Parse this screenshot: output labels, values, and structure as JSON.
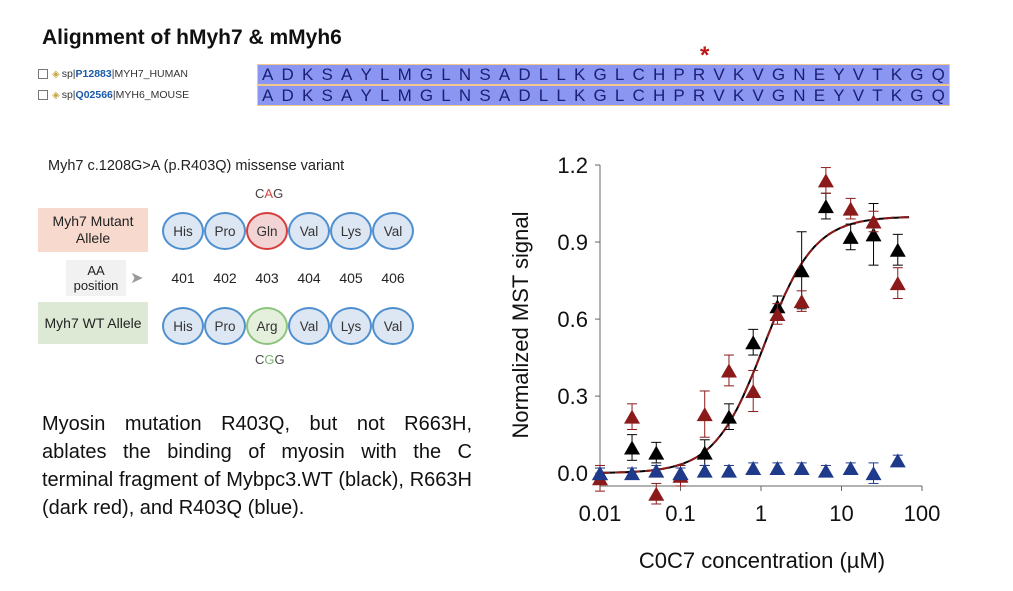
{
  "alignment": {
    "title": "Alignment of hMyh7 & mMyh6",
    "rows": [
      {
        "prefix": "sp|",
        "accession": "P12883",
        "name": "|MYH7_HUMAN"
      },
      {
        "prefix": "sp|",
        "accession": "Q02566",
        "name": "|MYH6_MOUSE"
      }
    ],
    "sequence": [
      "A",
      "D",
      "K",
      "S",
      "A",
      "Y",
      "L",
      "M",
      "G",
      "L",
      "N",
      "S",
      "A",
      "D",
      "L",
      "L",
      "K",
      "G",
      "L",
      "C",
      "H",
      "P",
      "R",
      "V",
      "K",
      "V",
      "G",
      "N",
      "E",
      "Y",
      "V",
      "T",
      "K",
      "G",
      "Q"
    ],
    "marker": "*",
    "colors": {
      "residue_bg": "#8b96f3",
      "border": "#f2c78a",
      "marker": "#c01818"
    }
  },
  "variant": {
    "title": "Myh7 c.1208G>A (p.R403Q) missense variant",
    "mutant_label": "Myh7 Mutant Allele",
    "wt_label": "Myh7 WT Allele",
    "position_label": "AA position",
    "mutant_codon": {
      "pre": "C",
      "hl": "A",
      "post": "G"
    },
    "wt_codon": {
      "pre": "C",
      "hl": "G",
      "post": "G"
    },
    "mutant_residues": [
      "His",
      "Pro",
      "Gln",
      "Val",
      "Lys",
      "Val"
    ],
    "wt_residues": [
      "His",
      "Pro",
      "Arg",
      "Val",
      "Lys",
      "Val"
    ],
    "positions": [
      "401",
      "402",
      "403",
      "404",
      "405",
      "406"
    ],
    "colors": {
      "mutant_bg": "#f7d9cd",
      "wt_bg": "#dde9d5",
      "mutant_ring": "#d63c3c",
      "mutant_fill": "#f3d4d4",
      "wt_ring": "#8cc47c",
      "wt_fill": "#e4efdc",
      "default_ring": "#4f8fcf",
      "default_fill": "#dde7f3"
    }
  },
  "caption": "Myosin mutation R403Q, but not R663H, ablates the binding of myosin with the C terminal fragment of Mybpc3.WT (black), R663H (dark red), and R403Q (blue).",
  "chart_data": {
    "type": "scatter",
    "xscale": "log",
    "xlim": [
      0.01,
      100
    ],
    "ylim": [
      -0.05,
      1.2
    ],
    "xticks": [
      0.01,
      0.1,
      1,
      10,
      100
    ],
    "xtick_labels": [
      "0.01",
      "0.1",
      "1",
      "10",
      "100"
    ],
    "yticks": [
      0.0,
      0.3,
      0.6,
      0.9,
      1.2
    ],
    "ytick_labels": [
      "0.0",
      "0.3",
      "0.6",
      "0.9",
      "1.2"
    ],
    "xlabel": "C0C7 concentration (µM)",
    "ylabel": "Normalized MST signal",
    "series": [
      {
        "name": "WT",
        "color": "#000000",
        "x": [
          0.01,
          0.025,
          0.05,
          0.1,
          0.2,
          0.4,
          0.8,
          1.6,
          3.2,
          6.4,
          13,
          25,
          50
        ],
        "y": [
          0.0,
          0.1,
          0.08,
          0.0,
          0.08,
          0.22,
          0.51,
          0.65,
          0.79,
          1.04,
          0.92,
          0.93,
          0.87
        ],
        "err": [
          0.02,
          0.05,
          0.04,
          0.03,
          0.05,
          0.05,
          0.05,
          0.04,
          0.15,
          0.05,
          0.05,
          0.12,
          0.06
        ]
      },
      {
        "name": "R663H",
        "color": "#8b1a1a",
        "x": [
          0.01,
          0.025,
          0.05,
          0.1,
          0.2,
          0.4,
          0.8,
          1.6,
          3.2,
          6.4,
          13,
          25,
          50
        ],
        "y": [
          -0.02,
          0.22,
          -0.08,
          -0.01,
          0.23,
          0.4,
          0.32,
          0.62,
          0.67,
          1.14,
          1.03,
          0.98,
          0.74
        ],
        "err": [
          0.05,
          0.05,
          0.04,
          0.04,
          0.09,
          0.06,
          0.08,
          0.04,
          0.04,
          0.05,
          0.04,
          0.04,
          0.06
        ]
      },
      {
        "name": "R403Q",
        "color": "#1f3a8a",
        "x": [
          0.01,
          0.025,
          0.05,
          0.1,
          0.2,
          0.4,
          0.8,
          1.6,
          3.2,
          6.4,
          13,
          25,
          50
        ],
        "y": [
          0.0,
          0.0,
          0.01,
          0.0,
          0.01,
          0.01,
          0.02,
          0.02,
          0.02,
          0.01,
          0.02,
          0.0,
          0.05
        ],
        "err": [
          0.02,
          0.02,
          0.02,
          0.02,
          0.02,
          0.02,
          0.02,
          0.02,
          0.02,
          0.02,
          0.02,
          0.04,
          0.02
        ]
      }
    ],
    "fits": [
      {
        "name": "WT fit",
        "color": "#000000",
        "top": 1.0,
        "ec50": 1.1,
        "hill": 1.4,
        "style": "solid"
      },
      {
        "name": "R663H fit",
        "color": "#8b1a1a",
        "top": 1.0,
        "ec50": 1.1,
        "hill": 1.4,
        "style": "dashed"
      }
    ]
  }
}
